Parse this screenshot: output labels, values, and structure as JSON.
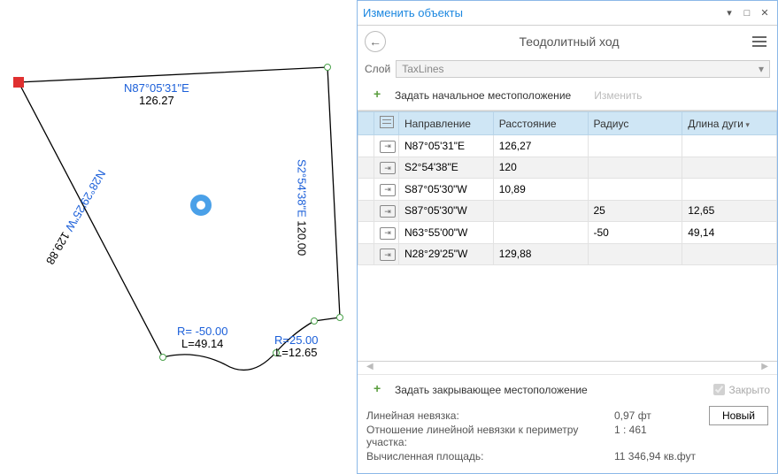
{
  "panel": {
    "title": "Изменить объекты",
    "header": "Теодолитный ход",
    "layer_label": "Слой",
    "layer_value": "TaxLines",
    "start_loc_label": "Задать начальное местоположение",
    "edit_label": "Изменить",
    "columns": {
      "direction": "Направление",
      "distance": "Расстояние",
      "radius": "Радиус",
      "arc_length": "Длина дуги"
    },
    "rows": [
      {
        "dir": "N87°05'31\"E",
        "dist": "126,27",
        "rad": "",
        "arc": ""
      },
      {
        "dir": "S2°54'38\"E",
        "dist": "120",
        "rad": "",
        "arc": ""
      },
      {
        "dir": "S87°05'30\"W",
        "dist": "10,89",
        "rad": "",
        "arc": ""
      },
      {
        "dir": "S87°05'30\"W",
        "dist": "",
        "rad": "25",
        "arc": "12,65"
      },
      {
        "dir": "N63°55'00\"W",
        "dist": "",
        "rad": "-50",
        "arc": "49,14"
      },
      {
        "dir": "N28°29'25\"W",
        "dist": "129,88",
        "rad": "",
        "arc": ""
      }
    ],
    "closing_label": "Задать закрывающее местоположение",
    "closed_label": "Закрыто",
    "misclosure_label": "Линейная невязка:",
    "misclosure_value": "0,97 фт",
    "ratio_label": "Отношение линейной невязки к периметру участка:",
    "ratio_value": "1 : 461",
    "area_label": "Вычисленная площадь:",
    "area_value": "11 346,94 кв.фут",
    "new_btn": "Новый"
  },
  "sketch": {
    "colors": {
      "line": "#000000",
      "accent": "#1b5fd9",
      "start": "#e03030",
      "vertex_border": "#4aa24a",
      "donut": "#4aa0e8"
    },
    "labels": {
      "top_dir": "N87°05'31\"E",
      "top_len": "126.27",
      "right_dir": "S2°54'38\"E",
      "right_len": "120.00",
      "r1": "R=25.00",
      "l1": "L=12.65",
      "r2": "R= -50.00",
      "l2": "L=49.14",
      "left_dir": "N28°29'25\"W",
      "left_len": "129.88"
    }
  }
}
